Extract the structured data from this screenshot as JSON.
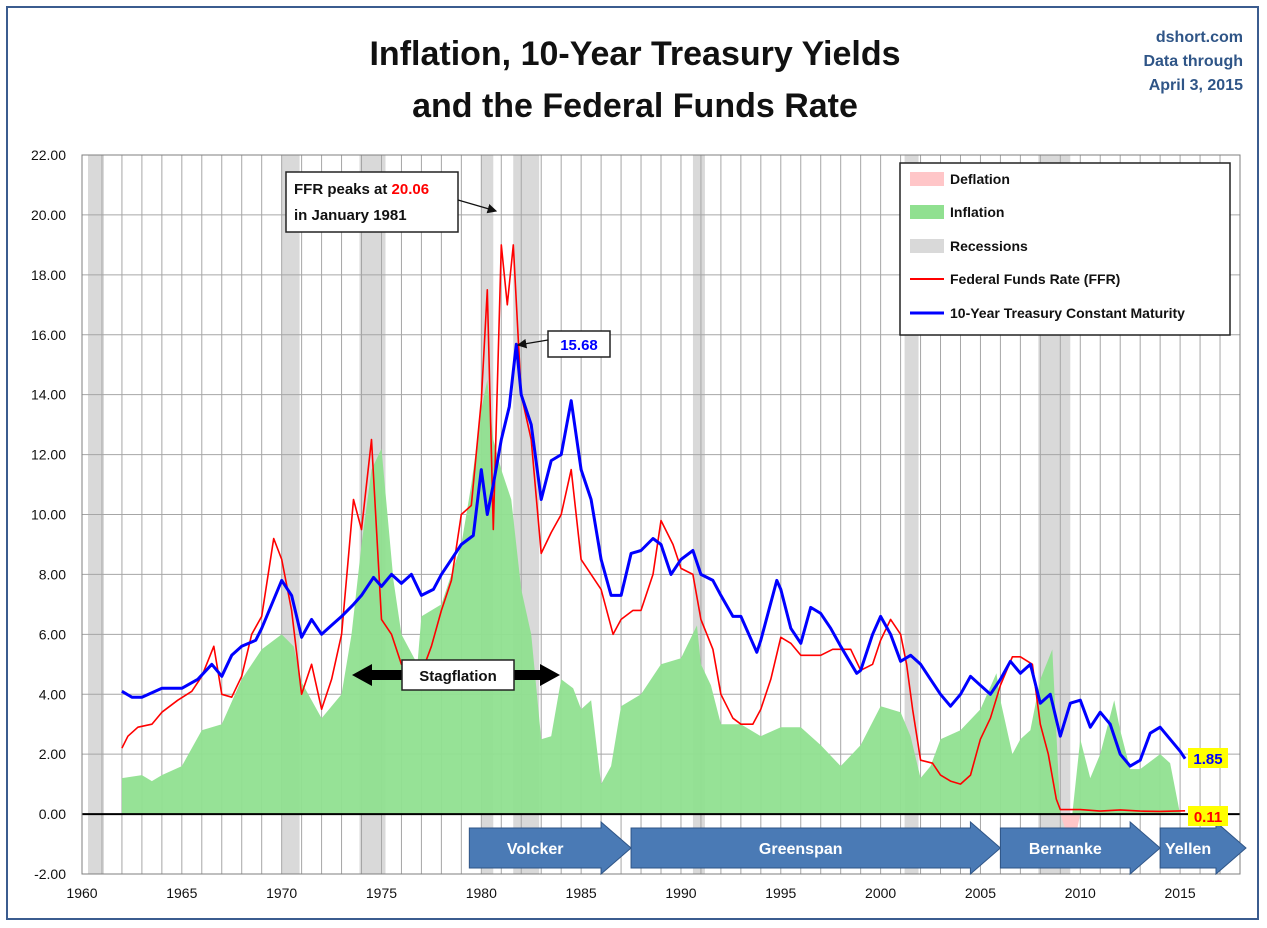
{
  "title": {
    "line1": "Inflation, 10-Year Treasury Yields",
    "line2": "and the Federal Funds Rate"
  },
  "source": {
    "site": "dshort.com",
    "line2": "Data through",
    "line3": "April 3, 2015"
  },
  "colors": {
    "inflation": "#90e090",
    "deflation": "#ffc6c8",
    "recession": "#d9d9d9",
    "ffr": "#ff0000",
    "treasury": "#0000ff",
    "chair_arrow": "#4a7ab5",
    "highlight": "#ffff00",
    "frame": "#3b5c8f"
  },
  "annotations": {
    "ffr_peak_prefix": "FFR peaks at ",
    "ffr_peak_value": "20.06",
    "ffr_peak_line2": "in January 1981",
    "treasury_peak": "15.68",
    "stagflation": "Stagflation",
    "last_treasury": "1.85",
    "last_ffr": "0.11"
  },
  "chairs": [
    {
      "name": "Volcker",
      "start": 1979.4,
      "end": 1987.5
    },
    {
      "name": "Greenspan",
      "start": 1987.5,
      "end": 2006.0
    },
    {
      "name": "Bernanke",
      "start": 2006.0,
      "end": 2014.0
    },
    {
      "name": "Yellen",
      "start": 2014.0,
      "end": 2018.3
    }
  ],
  "chart_data": {
    "type": "line",
    "title": "Inflation, 10-Year Treasury Yields and the Federal Funds Rate",
    "xlim": [
      1960,
      2018
    ],
    "ylim": [
      -2,
      22
    ],
    "xticks": [
      "1960",
      "1965",
      "1970",
      "1975",
      "1980",
      "1985",
      "1990",
      "1995",
      "2000",
      "2005",
      "2010",
      "2015"
    ],
    "yticks": [
      "-2.00",
      "0.00",
      "2.00",
      "4.00",
      "6.00",
      "8.00",
      "10.00",
      "12.00",
      "14.00",
      "16.00",
      "18.00",
      "20.00",
      "22.00"
    ],
    "grid": true,
    "legend_position": "top-right",
    "legend": [
      "Deflation",
      "Inflation",
      "Recessions",
      "Federal Funds Rate (FFR)",
      "10-Year Treasury Constant Maturity"
    ],
    "recessions": [
      [
        1960.3,
        1961.1
      ],
      [
        1970.0,
        1970.9
      ],
      [
        1973.9,
        1975.2
      ],
      [
        1980.0,
        1980.6
      ],
      [
        1981.6,
        1982.9
      ],
      [
        1990.6,
        1991.2
      ],
      [
        2001.2,
        2001.9
      ],
      [
        2007.9,
        2009.5
      ]
    ],
    "series": [
      {
        "name": "Federal Funds Rate (FFR)",
        "x": [
          1962.0,
          1962.3,
          1962.8,
          1963.5,
          1964.0,
          1964.8,
          1965.5,
          1966.0,
          1966.6,
          1967.0,
          1967.5,
          1968.0,
          1968.5,
          1969.0,
          1969.6,
          1970.0,
          1970.5,
          1971.0,
          1971.5,
          1972.0,
          1972.5,
          1973.0,
          1973.6,
          1974.0,
          1974.5,
          1975.0,
          1975.5,
          1976.0,
          1976.6,
          1977.0,
          1977.5,
          1978.0,
          1978.5,
          1979.0,
          1979.5,
          1980.0,
          1980.3,
          1980.6,
          1981.0,
          1981.3,
          1981.6,
          1982.0,
          1982.5,
          1983.0,
          1983.5,
          1984.0,
          1984.5,
          1985.0,
          1985.5,
          1986.0,
          1986.6,
          1987.0,
          1987.6,
          1988.0,
          1988.6,
          1989.0,
          1989.6,
          1990.0,
          1990.6,
          1991.0,
          1991.6,
          1992.0,
          1992.6,
          1993.0,
          1993.6,
          1994.0,
          1994.5,
          1995.0,
          1995.5,
          1996.0,
          1996.6,
          1997.0,
          1997.6,
          1998.0,
          1998.5,
          1999.0,
          1999.6,
          2000.0,
          2000.5,
          2001.0,
          2001.3,
          2001.6,
          2002.0,
          2002.6,
          2003.0,
          2003.5,
          2004.0,
          2004.5,
          2005.0,
          2005.5,
          2006.0,
          2006.6,
          2007.0,
          2007.6,
          2008.0,
          2008.4,
          2008.8,
          2009.0,
          2010.0,
          2011.0,
          2012.0,
          2013.0,
          2014.0,
          2015.25
        ],
        "y": [
          2.2,
          2.6,
          2.9,
          3.0,
          3.4,
          3.8,
          4.1,
          4.6,
          5.6,
          4.0,
          3.9,
          4.6,
          6.0,
          6.6,
          9.2,
          8.5,
          6.8,
          4.0,
          5.0,
          3.5,
          4.5,
          6.0,
          10.5,
          9.5,
          12.5,
          6.5,
          6.0,
          5.0,
          5.0,
          4.7,
          5.6,
          6.8,
          7.8,
          10.0,
          10.3,
          13.8,
          17.5,
          9.5,
          19.0,
          17.0,
          19.0,
          14.0,
          12.5,
          8.7,
          9.4,
          10.0,
          11.5,
          8.5,
          8.0,
          7.5,
          6.0,
          6.5,
          6.8,
          6.8,
          8.0,
          9.8,
          9.0,
          8.2,
          8.0,
          6.5,
          5.5,
          4.0,
          3.2,
          3.0,
          3.0,
          3.5,
          4.5,
          5.9,
          5.7,
          5.3,
          5.3,
          5.3,
          5.5,
          5.5,
          5.5,
          4.8,
          5.0,
          5.8,
          6.5,
          6.0,
          5.0,
          3.5,
          1.8,
          1.7,
          1.3,
          1.1,
          1.0,
          1.3,
          2.5,
          3.2,
          4.3,
          5.25,
          5.25,
          5.0,
          3.0,
          2.0,
          0.5,
          0.15,
          0.15,
          0.1,
          0.14,
          0.1,
          0.09,
          0.11
        ]
      },
      {
        "name": "10-Year Treasury Constant Maturity",
        "x": [
          1962.0,
          1962.5,
          1963.0,
          1964.0,
          1965.0,
          1965.8,
          1966.5,
          1967.0,
          1967.5,
          1968.0,
          1968.7,
          1969.0,
          1969.5,
          1970.0,
          1970.5,
          1971.0,
          1971.5,
          1972.0,
          1972.5,
          1973.0,
          1973.6,
          1974.0,
          1974.6,
          1975.0,
          1975.5,
          1976.0,
          1976.5,
          1977.0,
          1977.6,
          1978.0,
          1978.6,
          1979.0,
          1979.6,
          1980.0,
          1980.3,
          1980.6,
          1981.0,
          1981.4,
          1981.75,
          1982.0,
          1982.5,
          1983.0,
          1983.5,
          1984.0,
          1984.5,
          1985.0,
          1985.5,
          1986.0,
          1986.5,
          1987.0,
          1987.5,
          1988.0,
          1988.6,
          1989.0,
          1989.5,
          1990.0,
          1990.6,
          1991.0,
          1991.6,
          1992.0,
          1992.6,
          1993.0,
          1993.8,
          1994.0,
          1994.8,
          1995.0,
          1995.5,
          1996.0,
          1996.5,
          1997.0,
          1997.5,
          1998.0,
          1998.8,
          1999.0,
          1999.6,
          2000.0,
          2000.5,
          2001.0,
          2001.5,
          2002.0,
          2002.5,
          2003.0,
          2003.5,
          2004.0,
          2004.5,
          2005.0,
          2005.5,
          2006.0,
          2006.5,
          2007.0,
          2007.5,
          2008.0,
          2008.5,
          2009.0,
          2009.5,
          2010.0,
          2010.5,
          2011.0,
          2011.5,
          2012.0,
          2012.5,
          2013.0,
          2013.5,
          2014.0,
          2014.5,
          2015.0,
          2015.25
        ],
        "y": [
          4.1,
          3.9,
          3.9,
          4.2,
          4.2,
          4.5,
          5.0,
          4.6,
          5.3,
          5.6,
          5.8,
          6.2,
          7.0,
          7.8,
          7.3,
          5.9,
          6.5,
          6.0,
          6.3,
          6.6,
          7.0,
          7.3,
          7.9,
          7.6,
          8.0,
          7.7,
          8.0,
          7.3,
          7.5,
          8.0,
          8.6,
          9.0,
          9.3,
          11.5,
          10.0,
          11.0,
          12.5,
          13.6,
          15.68,
          14.0,
          13.0,
          10.5,
          11.8,
          12.0,
          13.8,
          11.5,
          10.5,
          8.5,
          7.3,
          7.3,
          8.7,
          8.8,
          9.2,
          9.0,
          8.0,
          8.5,
          8.8,
          8.0,
          7.8,
          7.3,
          6.6,
          6.6,
          5.4,
          5.8,
          7.8,
          7.5,
          6.2,
          5.7,
          6.9,
          6.7,
          6.2,
          5.6,
          4.7,
          4.8,
          6.0,
          6.6,
          6.0,
          5.1,
          5.3,
          5.0,
          4.5,
          4.0,
          3.6,
          4.0,
          4.6,
          4.3,
          4.0,
          4.5,
          5.1,
          4.7,
          5.0,
          3.7,
          4.0,
          2.6,
          3.7,
          3.8,
          2.9,
          3.4,
          3.0,
          2.0,
          1.6,
          1.8,
          2.7,
          2.9,
          2.5,
          2.1,
          1.85
        ]
      },
      {
        "name": "Inflation",
        "x": [
          1962.0,
          1963.0,
          1963.5,
          1964.0,
          1965.0,
          1966.0,
          1967.0,
          1968.0,
          1969.0,
          1970.0,
          1970.6,
          1971.0,
          1972.0,
          1973.0,
          1973.5,
          1974.0,
          1974.5,
          1975.0,
          1975.6,
          1976.0,
          1976.8,
          1977.0,
          1978.0,
          1979.0,
          1979.5,
          1980.0,
          1980.3,
          1980.6,
          1981.0,
          1981.5,
          1982.0,
          1982.5,
          1983.0,
          1983.5,
          1984.0,
          1984.6,
          1985.0,
          1985.5,
          1986.0,
          1986.5,
          1987.0,
          1988.0,
          1989.0,
          1990.0,
          1990.8,
          1991.0,
          1991.5,
          1992.0,
          1993.0,
          1994.0,
          1995.0,
          1996.0,
          1997.0,
          1998.0,
          1999.0,
          2000.0,
          2001.0,
          2001.5,
          2002.0,
          2002.5,
          2003.0,
          2004.0,
          2005.0,
          2005.8,
          2006.0,
          2006.6,
          2007.0,
          2007.5,
          2008.0,
          2008.6,
          2009.0,
          2009.3,
          2009.6,
          2010.0,
          2010.5,
          2011.0,
          2011.7,
          2012.0,
          2012.5,
          2013.0,
          2014.0,
          2014.5,
          2015.0
        ],
        "y": [
          1.2,
          1.3,
          1.1,
          1.3,
          1.6,
          2.8,
          3.0,
          4.5,
          5.5,
          6.0,
          5.6,
          4.4,
          3.2,
          4.0,
          6.0,
          9.0,
          11.5,
          12.2,
          7.8,
          6.0,
          5.0,
          6.6,
          7.0,
          9.0,
          11.0,
          13.5,
          14.5,
          12.5,
          11.5,
          10.5,
          7.5,
          6.0,
          2.5,
          2.6,
          4.5,
          4.2,
          3.5,
          3.8,
          1.0,
          1.6,
          3.6,
          4.0,
          5.0,
          5.2,
          6.3,
          5.0,
          4.3,
          3.0,
          3.0,
          2.6,
          2.9,
          2.9,
          2.3,
          1.6,
          2.3,
          3.6,
          3.4,
          2.6,
          1.2,
          1.6,
          2.5,
          2.8,
          3.5,
          4.7,
          3.8,
          2.0,
          2.5,
          2.8,
          4.5,
          5.5,
          0.0,
          -0.6,
          -1.3,
          2.5,
          1.2,
          2.0,
          3.8,
          2.8,
          1.5,
          1.5,
          2.0,
          1.7,
          0.0
        ]
      }
    ]
  }
}
